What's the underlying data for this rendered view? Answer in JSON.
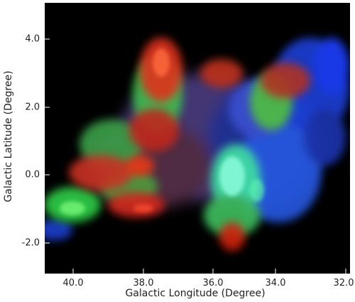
{
  "figure": {
    "xlabel": "Galactic Longitude (Degree)",
    "ylabel": "Galactic Latitude (Degree)",
    "x_ticks": [
      "40.0",
      "38.0",
      "36.0",
      "34.0",
      "32.0"
    ],
    "y_ticks": [
      "4.0",
      "2.0",
      "0.0",
      "-2.0"
    ],
    "x_range": [
      40.8,
      32.0
    ],
    "y_range": [
      -2.9,
      5.0
    ],
    "channels": {
      "red": "#ff3a1a",
      "green": "#2fe05a",
      "blue": "#2b5cff"
    }
  }
}
